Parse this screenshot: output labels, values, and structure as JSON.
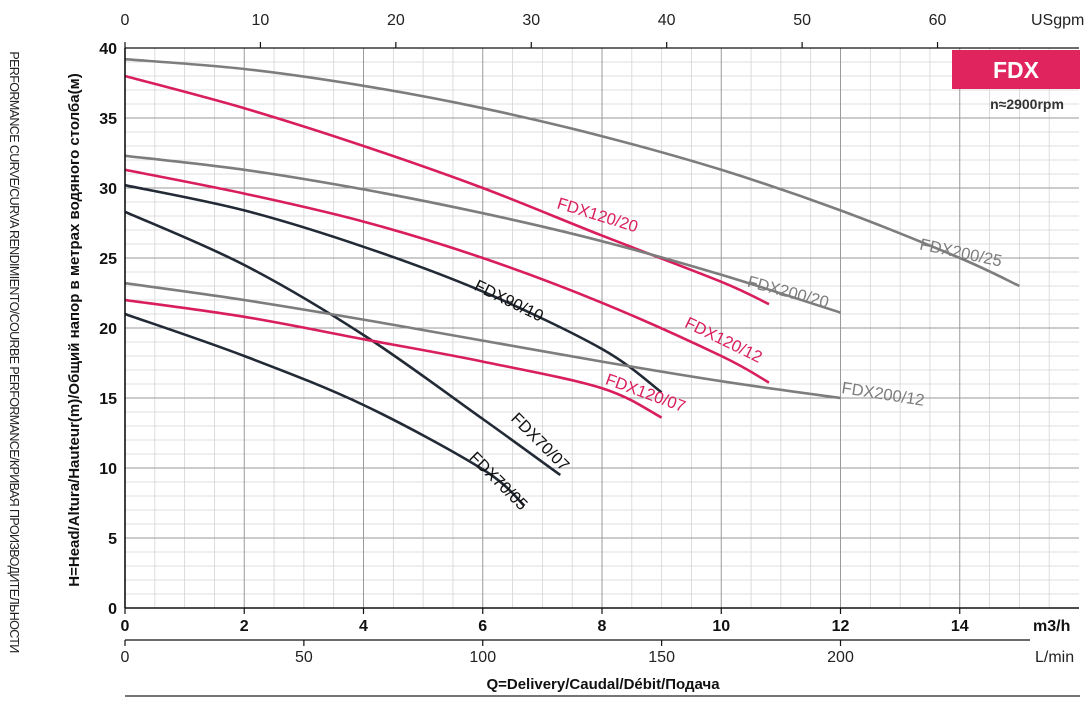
{
  "side_title": "PERFORMANCE CURVE/CURVA RENDIMIENTO/COURBE PERFORMANCE/КРИВАЯ ПРОИЗВОДИТЕЛЬНОСТИ",
  "badge": {
    "label": "FDX",
    "speed": "n≈2900rpm",
    "color": "#e0245e"
  },
  "chart_data": {
    "type": "line",
    "ylabel": "H=Head/Altura/Hauteur(m)/Общий напор в метрах водяного столба(м)",
    "xlabel": "Q=Delivery/Caudal/Débit/Подача",
    "ylim": [
      0,
      40
    ],
    "y_ticks": [
      0,
      5,
      10,
      15,
      20,
      25,
      30,
      35,
      40
    ],
    "x_m3h": {
      "ticks": [
        0,
        2,
        4,
        6,
        8,
        10,
        12,
        14
      ],
      "unit": "m3/h",
      "range": [
        0,
        16
      ]
    },
    "x_lmin": {
      "ticks": [
        0,
        50,
        100,
        150,
        200
      ],
      "unit": "L/min"
    },
    "x_usgpm": {
      "ticks": [
        0,
        10,
        20,
        30,
        40,
        50,
        60
      ],
      "unit": "USgpm"
    },
    "grid": true,
    "series": [
      {
        "name": "FDX200/25",
        "color": "#7d7d7d",
        "x": [
          0,
          2,
          4,
          6,
          8,
          10,
          12,
          14,
          15
        ],
        "y": [
          39.2,
          38.5,
          37.3,
          35.7,
          33.7,
          31.3,
          28.4,
          25.0,
          23.0
        ]
      },
      {
        "name": "FDX120/20",
        "color": "#d81e5b",
        "x": [
          0,
          2,
          4,
          6,
          8,
          10,
          10.8
        ],
        "y": [
          38.0,
          35.7,
          33.0,
          30.0,
          26.6,
          23.3,
          21.7
        ]
      },
      {
        "name": "FDX200/20",
        "color": "#7d7d7d",
        "x": [
          0,
          2,
          4,
          6,
          8,
          10,
          12
        ],
        "y": [
          32.3,
          31.3,
          29.9,
          28.2,
          26.2,
          23.8,
          21.1
        ]
      },
      {
        "name": "FDX120/12",
        "color": "#d81e5b",
        "x": [
          0,
          2,
          4,
          6,
          8,
          10,
          10.8
        ],
        "y": [
          31.3,
          29.6,
          27.6,
          25.0,
          21.8,
          18.0,
          16.1
        ]
      },
      {
        "name": "FDX90/10",
        "color": "#222a36",
        "x": [
          0,
          2,
          4,
          6,
          8,
          9
        ],
        "y": [
          30.2,
          28.4,
          25.8,
          22.6,
          18.5,
          15.4
        ]
      },
      {
        "name": "FDX70/07",
        "color": "#222a36",
        "x": [
          0,
          2,
          4,
          6,
          7.3
        ],
        "y": [
          28.3,
          24.5,
          19.5,
          13.5,
          9.5
        ]
      },
      {
        "name": "FDX200/12",
        "color": "#7d7d7d",
        "x": [
          0,
          2,
          4,
          6,
          8,
          10,
          12
        ],
        "y": [
          23.2,
          22.0,
          20.6,
          19.1,
          17.6,
          16.2,
          15.0
        ]
      },
      {
        "name": "FDX120/07",
        "color": "#d81e5b",
        "x": [
          0,
          2,
          4,
          6,
          8,
          9
        ],
        "y": [
          22.0,
          20.8,
          19.2,
          17.6,
          15.7,
          13.6
        ]
      },
      {
        "name": "FDX70/05",
        "color": "#222a36",
        "x": [
          0,
          2,
          4,
          6,
          6.7
        ],
        "y": [
          21.0,
          18.0,
          14.5,
          9.9,
          7.3
        ]
      }
    ],
    "labels": [
      {
        "text": "FDX200/25",
        "x": 14.0,
        "y": 25.0,
        "angle": 12,
        "color": "#7d7d7d"
      },
      {
        "text": "FDX120/20",
        "x": 7.9,
        "y": 27.7,
        "angle": 17,
        "color": "#d81e5b"
      },
      {
        "text": "FDX200/20",
        "x": 11.1,
        "y": 22.2,
        "angle": 15,
        "color": "#7d7d7d"
      },
      {
        "text": "FDX120/12",
        "x": 10.0,
        "y": 18.8,
        "angle": 26,
        "color": "#d81e5b"
      },
      {
        "text": "FDX90/10",
        "x": 6.4,
        "y": 21.6,
        "angle": 26,
        "color": "#111111"
      },
      {
        "text": "FDX200/12",
        "x": 12.7,
        "y": 14.9,
        "angle": 9,
        "color": "#7d7d7d"
      },
      {
        "text": "FDX120/07",
        "x": 8.7,
        "y": 15.0,
        "angle": 20,
        "color": "#d81e5b"
      },
      {
        "text": "FDX70/07",
        "x": 6.9,
        "y": 11.6,
        "angle": 45,
        "color": "#111111"
      },
      {
        "text": "FDX70/05",
        "x": 6.2,
        "y": 8.8,
        "angle": 45,
        "color": "#111111"
      }
    ]
  }
}
